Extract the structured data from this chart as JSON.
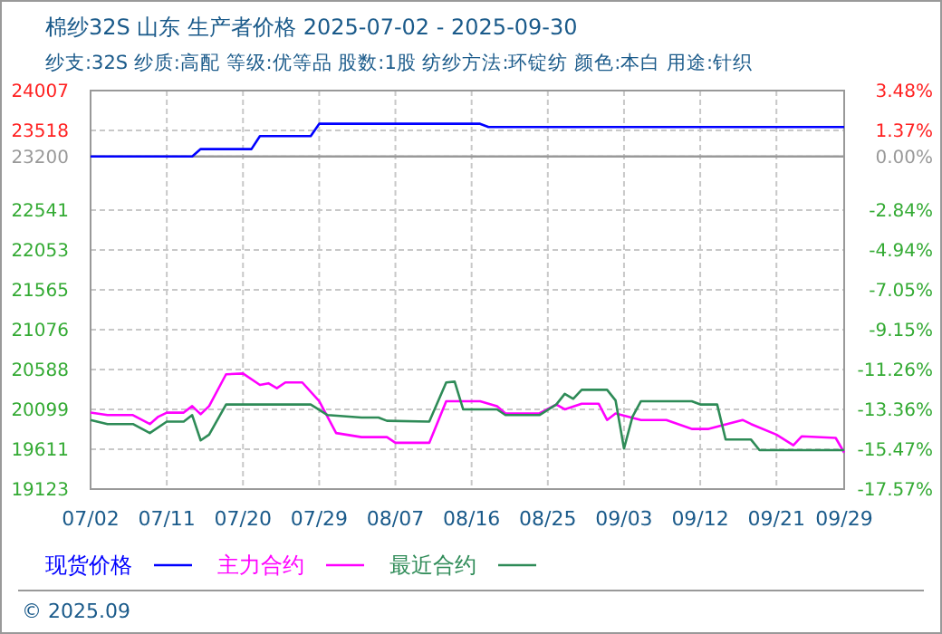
{
  "chart_data": {
    "type": "line",
    "title": "棉纱32S 山东 生产者价格 2025-07-02 - 2025-09-30",
    "subtitle": "纱支:32S 纱质:高配 等级:优等品 股数:1股 纺纱方法:环锭纺 颜色:本白 用途:针织",
    "xlim": [
      "2025-07-02",
      "2025-09-29"
    ],
    "xticks": [
      {
        "value": "2025-07-02",
        "label": "07/02"
      },
      {
        "value": "2025-07-11",
        "label": "07/11"
      },
      {
        "value": "2025-07-20",
        "label": "07/20"
      },
      {
        "value": "2025-07-29",
        "label": "07/29"
      },
      {
        "value": "2025-08-07",
        "label": "08/07"
      },
      {
        "value": "2025-08-16",
        "label": "08/16"
      },
      {
        "value": "2025-08-25",
        "label": "08/25"
      },
      {
        "value": "2025-09-03",
        "label": "09/03"
      },
      {
        "value": "2025-09-12",
        "label": "09/12"
      },
      {
        "value": "2025-09-21",
        "label": "09/21"
      },
      {
        "value": "2025-09-29",
        "label": "09/29"
      }
    ],
    "ylim": [
      19123,
      24007
    ],
    "yticks": [
      19123,
      19611,
      20099,
      20588,
      21076,
      21565,
      22053,
      22541,
      23200,
      23518,
      24007
    ],
    "y2lim": [
      -17.57,
      3.48
    ],
    "y2ticks": [
      {
        "value": -17.57,
        "label": "-17.57%"
      },
      {
        "value": -15.47,
        "label": "-15.47%"
      },
      {
        "value": -13.36,
        "label": "-13.36%"
      },
      {
        "value": -11.26,
        "label": "-11.26%"
      },
      {
        "value": -9.15,
        "label": "-9.15%"
      },
      {
        "value": -7.05,
        "label": "-7.05%"
      },
      {
        "value": -4.94,
        "label": "-4.94%"
      },
      {
        "value": -2.84,
        "label": "-2.84%"
      },
      {
        "value": 0,
        "label": "0.00%"
      },
      {
        "value": 1.37,
        "label": "1.37%"
      },
      {
        "value": 3.48,
        "label": "3.48%"
      }
    ],
    "grid": true,
    "legend": "bottom",
    "ref_lines": [
      {
        "axis": "y",
        "value": 23200,
        "color": "#999999"
      }
    ],
    "series": [
      {
        "name": "现货价格",
        "color": "#0000ff",
        "x": [
          "2025-07-02",
          "2025-07-14",
          "2025-07-15",
          "2025-07-21",
          "2025-07-22",
          "2025-07-28",
          "2025-07-29",
          "2025-08-17",
          "2025-08-18",
          "2025-09-29"
        ],
        "values": [
          23200,
          23200,
          23290,
          23290,
          23450,
          23450,
          23600,
          23600,
          23560,
          23560
        ]
      },
      {
        "name": "主力合约",
        "color": "#ff00ff",
        "x": [
          "2025-07-02",
          "2025-07-04",
          "2025-07-07",
          "2025-07-09",
          "2025-07-10",
          "2025-07-11",
          "2025-07-13",
          "2025-07-14",
          "2025-07-15",
          "2025-07-16",
          "2025-07-18",
          "2025-07-20",
          "2025-07-22",
          "2025-07-23",
          "2025-07-24",
          "2025-07-25",
          "2025-07-27",
          "2025-07-29",
          "2025-07-31",
          "2025-08-03",
          "2025-08-06",
          "2025-08-07",
          "2025-08-11",
          "2025-08-13",
          "2025-08-17",
          "2025-08-19",
          "2025-08-20",
          "2025-08-24",
          "2025-08-26",
          "2025-08-27",
          "2025-08-29",
          "2025-08-31",
          "2025-09-01",
          "2025-09-02",
          "2025-09-05",
          "2025-09-08",
          "2025-09-11",
          "2025-09-13",
          "2025-09-17",
          "2025-09-18",
          "2025-09-21",
          "2025-09-23",
          "2025-09-24",
          "2025-09-28",
          "2025-09-29"
        ],
        "values": [
          20060,
          20030,
          20030,
          19920,
          20010,
          20060,
          20060,
          20140,
          20040,
          20140,
          20530,
          20540,
          20400,
          20420,
          20360,
          20430,
          20430,
          20200,
          19810,
          19760,
          19760,
          19690,
          19690,
          20200,
          20200,
          20140,
          20050,
          20050,
          20160,
          20100,
          20170,
          20170,
          19970,
          20050,
          19970,
          19970,
          19860,
          19860,
          19970,
          19920,
          19790,
          19660,
          19770,
          19750,
          19570
        ]
      },
      {
        "name": "最近合约",
        "color": "#2e8b57",
        "x": [
          "2025-07-02",
          "2025-07-04",
          "2025-07-07",
          "2025-07-09",
          "2025-07-11",
          "2025-07-13",
          "2025-07-14",
          "2025-07-15",
          "2025-07-16",
          "2025-07-18",
          "2025-07-28",
          "2025-07-30",
          "2025-08-03",
          "2025-08-05",
          "2025-08-06",
          "2025-08-11",
          "2025-08-13",
          "2025-08-14",
          "2025-08-15",
          "2025-08-19",
          "2025-08-20",
          "2025-08-24",
          "2025-08-26",
          "2025-08-27",
          "2025-08-28",
          "2025-08-29",
          "2025-09-01",
          "2025-09-02",
          "2025-09-03",
          "2025-09-04",
          "2025-09-05",
          "2025-09-11",
          "2025-09-12",
          "2025-09-14",
          "2025-09-15",
          "2025-09-18",
          "2025-09-19",
          "2025-09-29"
        ],
        "values": [
          19970,
          19920,
          19920,
          19810,
          19950,
          19950,
          20030,
          19720,
          19790,
          20160,
          20160,
          20030,
          20000,
          20000,
          19960,
          19950,
          20430,
          20440,
          20100,
          20100,
          20030,
          20030,
          20160,
          20290,
          20230,
          20340,
          20340,
          20210,
          19620,
          20010,
          20200,
          20200,
          20160,
          20160,
          19730,
          19730,
          19600,
          19600
        ]
      }
    ],
    "annotations": [
      "© 2025.09"
    ]
  }
}
